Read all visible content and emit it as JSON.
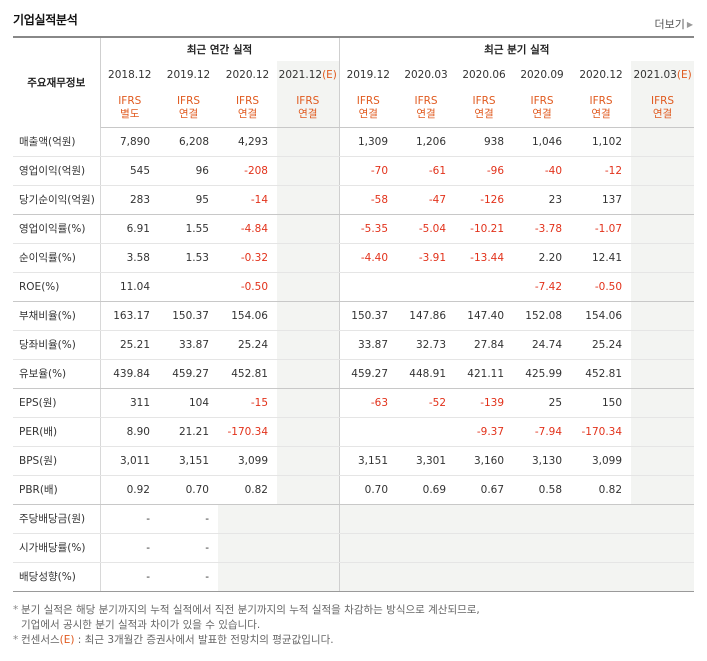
{
  "header": {
    "title": "기업실적분석",
    "more_label": "더보기",
    "more_icon": "triangle-right-icon"
  },
  "table": {
    "item_header": "주요재무정보",
    "annual_header": "최근 연간 실적",
    "quarter_header": "최근 분기 실적",
    "annual_dates": [
      "2018.12",
      "2019.12",
      "2020.12",
      "2021.12"
    ],
    "quarter_dates": [
      "2019.12",
      "2020.03",
      "2020.06",
      "2020.09",
      "2020.12",
      "2021.03"
    ],
    "estimate_mark": "(E)",
    "annual_ifrs": [
      [
        "IFRS",
        "별도"
      ],
      [
        "IFRS",
        "연결"
      ],
      [
        "IFRS",
        "연결"
      ],
      [
        "IFRS",
        "연결"
      ]
    ],
    "quarter_ifrs": [
      [
        "IFRS",
        "연결"
      ],
      [
        "IFRS",
        "연결"
      ],
      [
        "IFRS",
        "연결"
      ],
      [
        "IFRS",
        "연결"
      ],
      [
        "IFRS",
        "연결"
      ],
      [
        "IFRS",
        "연결"
      ]
    ],
    "rows": [
      {
        "label": "매출액(억원)",
        "annual": [
          "7,890",
          "6,208",
          "4,293",
          ""
        ],
        "quarter": [
          "1,309",
          "1,206",
          "938",
          "1,046",
          "1,102",
          ""
        ]
      },
      {
        "label": "영업이익(억원)",
        "annual": [
          "545",
          "96",
          "-208",
          ""
        ],
        "quarter": [
          "-70",
          "-61",
          "-96",
          "-40",
          "-12",
          ""
        ]
      },
      {
        "label": "당기순이익(억원)",
        "annual": [
          "283",
          "95",
          "-14",
          ""
        ],
        "quarter": [
          "-58",
          "-47",
          "-126",
          "23",
          "137",
          ""
        ]
      },
      {
        "label": "영업이익률(%)",
        "annual": [
          "6.91",
          "1.55",
          "-4.84",
          ""
        ],
        "quarter": [
          "-5.35",
          "-5.04",
          "-10.21",
          "-3.78",
          "-1.07",
          ""
        ]
      },
      {
        "label": "순이익률(%)",
        "annual": [
          "3.58",
          "1.53",
          "-0.32",
          ""
        ],
        "quarter": [
          "-4.40",
          "-3.91",
          "-13.44",
          "2.20",
          "12.41",
          ""
        ]
      },
      {
        "label": "ROE(%)",
        "annual": [
          "11.04",
          "",
          "-0.50",
          ""
        ],
        "quarter": [
          "",
          "",
          "",
          "-7.42",
          "-0.50",
          ""
        ]
      },
      {
        "label": "부채비율(%)",
        "annual": [
          "163.17",
          "150.37",
          "154.06",
          ""
        ],
        "quarter": [
          "150.37",
          "147.86",
          "147.40",
          "152.08",
          "154.06",
          ""
        ]
      },
      {
        "label": "당좌비율(%)",
        "annual": [
          "25.21",
          "33.87",
          "25.24",
          ""
        ],
        "quarter": [
          "33.87",
          "32.73",
          "27.84",
          "24.74",
          "25.24",
          ""
        ]
      },
      {
        "label": "유보율(%)",
        "annual": [
          "439.84",
          "459.27",
          "452.81",
          ""
        ],
        "quarter": [
          "459.27",
          "448.91",
          "421.11",
          "425.99",
          "452.81",
          ""
        ]
      },
      {
        "label": "EPS(원)",
        "annual": [
          "311",
          "104",
          "-15",
          ""
        ],
        "quarter": [
          "-63",
          "-52",
          "-139",
          "25",
          "150",
          ""
        ]
      },
      {
        "label": "PER(배)",
        "annual": [
          "8.90",
          "21.21",
          "-170.34",
          ""
        ],
        "quarter": [
          "",
          "",
          "-9.37",
          "-7.94",
          "-170.34",
          ""
        ]
      },
      {
        "label": "BPS(원)",
        "annual": [
          "3,011",
          "3,151",
          "3,099",
          ""
        ],
        "quarter": [
          "3,151",
          "3,301",
          "3,160",
          "3,130",
          "3,099",
          ""
        ]
      },
      {
        "label": "PBR(배)",
        "annual": [
          "0.92",
          "0.70",
          "0.82",
          ""
        ],
        "quarter": [
          "0.70",
          "0.69",
          "0.67",
          "0.58",
          "0.82",
          ""
        ]
      },
      {
        "label": "주당배당금(원)",
        "annual": [
          "-",
          "-",
          "",
          ""
        ],
        "quarter": [
          "",
          "",
          "",
          "",
          "",
          ""
        ]
      },
      {
        "label": "시가배당률(%)",
        "annual": [
          "-",
          "-",
          "",
          ""
        ],
        "quarter": [
          "",
          "",
          "",
          "",
          "",
          ""
        ]
      },
      {
        "label": "배당성향(%)",
        "annual": [
          "-",
          "-",
          "",
          ""
        ],
        "quarter": [
          "",
          "",
          "",
          "",
          "",
          ""
        ]
      }
    ]
  },
  "notes": {
    "line1": "분기 실적은 해당 분기까지의 누적 실적에서 직전 분기까지의 누적 실적을 차감하는 방식으로 계산되므로,",
    "line2": "기업에서 공시한 분기 실적과 차이가 있을 수 있습니다.",
    "line3_pre": "컨센서스",
    "line3_mark": "(E)",
    "line3_post": " : 최근 3개월간 증권사에서 발표한 전망치의 평균값입니다.",
    "bullet": "*"
  },
  "colors": {
    "negative": "#e2321b",
    "ifrs": "#e05a1f",
    "forecast_bg": "#f3f4f2"
  }
}
